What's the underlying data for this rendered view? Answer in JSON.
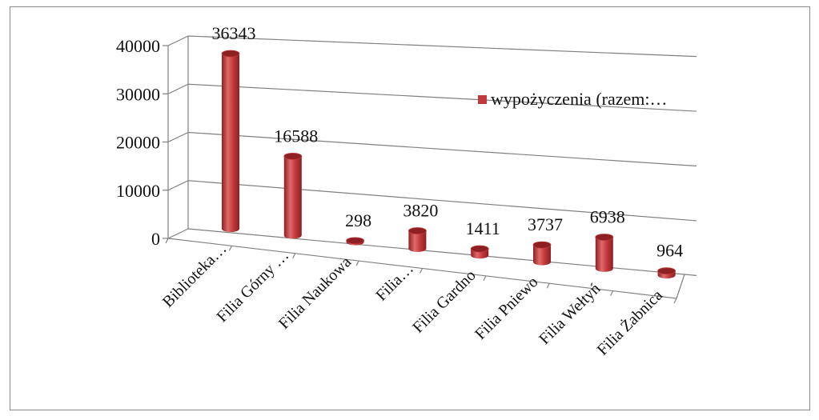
{
  "chart_data": {
    "type": "bar",
    "style": "3d-cylinder",
    "categories": [
      "Biblioteka…",
      "Filia Górny …",
      "Filia Naukowa",
      "Filia…",
      "Filia Gardno",
      "Filia Pniewo",
      "Filia Wełtyń",
      "Filia Żabnica"
    ],
    "series": [
      {
        "name": "wypożyczenia (razem:…",
        "values": [
          36343,
          16588,
          298,
          3820,
          1411,
          3737,
          6938,
          964
        ]
      }
    ],
    "data_labels": [
      "36343",
      "16588",
      "298",
      "3820",
      "1411",
      "3737",
      "6938",
      "964"
    ],
    "yticks": [
      "40000",
      "30000",
      "20000",
      "10000",
      "0"
    ],
    "ylim": [
      0,
      40000
    ],
    "grid": true,
    "legend": "right",
    "colors": {
      "bar": "#c0393b",
      "bar_dark": "#8e1f22",
      "bar_light": "#e06a6b",
      "grid": "#808080",
      "frame": "#8a8a8a"
    }
  }
}
